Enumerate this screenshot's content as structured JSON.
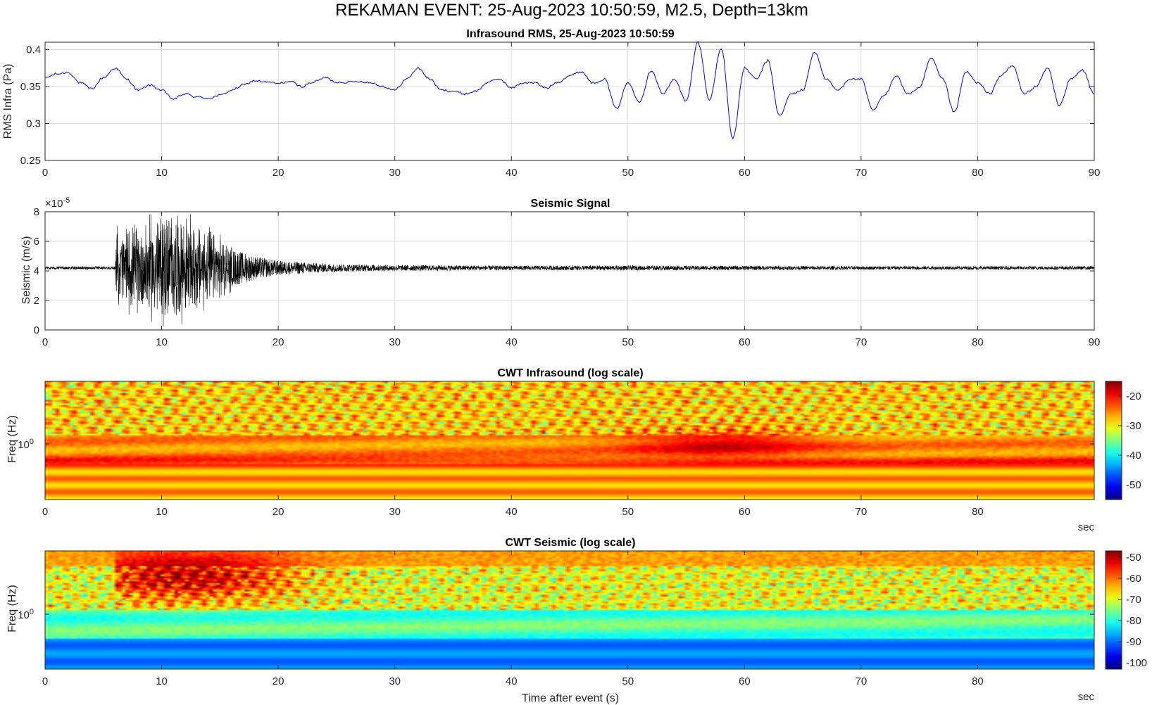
{
  "figure": {
    "suptitle": "REKAMAN EVENT: 25-Aug-2023 10:50:59, M2.5, Depth=13km"
  },
  "colors": {
    "rms_line": "#0000ff",
    "seismic_line": "#000000",
    "colormap": "jet"
  },
  "chart_data": [
    {
      "id": "infrasound-rms",
      "type": "line",
      "title": "Infrasound RMS, 25-Aug-2023 10:50:59",
      "xlabel": "",
      "ylabel": "RMS Infra (Pa)",
      "xlim": [
        0,
        90
      ],
      "ylim": [
        0.25,
        0.41
      ],
      "xticks": [
        0,
        10,
        20,
        30,
        40,
        50,
        60,
        70,
        80,
        90
      ],
      "yticks": [
        0.25,
        0.3,
        0.35,
        0.4
      ],
      "ytick_labels": [
        "0.25",
        "0.3",
        "0.35",
        "0.4"
      ],
      "grid": true,
      "series": [
        {
          "color": "#0000ff",
          "x": [
            0,
            1,
            2,
            3,
            4,
            5,
            6,
            7,
            8,
            9,
            10,
            11,
            12,
            13,
            14,
            15,
            16,
            17,
            18,
            19,
            20,
            21,
            22,
            23,
            24,
            25,
            26,
            27,
            28,
            29,
            30,
            31,
            32,
            33,
            34,
            35,
            36,
            37,
            38,
            39,
            40,
            41,
            42,
            43,
            44,
            45,
            46,
            47,
            48,
            49,
            50,
            51,
            52,
            53,
            54,
            55,
            56,
            57,
            58,
            59,
            60,
            61,
            62,
            63,
            64,
            65,
            66,
            67,
            68,
            69,
            70,
            71,
            72,
            73,
            74,
            75,
            76,
            77,
            78,
            79,
            80,
            81,
            82,
            83,
            84,
            85,
            86,
            87,
            88,
            89,
            90
          ],
          "y": [
            0.362,
            0.367,
            0.369,
            0.355,
            0.347,
            0.362,
            0.375,
            0.36,
            0.345,
            0.352,
            0.345,
            0.333,
            0.34,
            0.336,
            0.334,
            0.338,
            0.345,
            0.352,
            0.358,
            0.356,
            0.354,
            0.357,
            0.35,
            0.356,
            0.362,
            0.356,
            0.356,
            0.357,
            0.355,
            0.35,
            0.345,
            0.36,
            0.375,
            0.36,
            0.345,
            0.344,
            0.34,
            0.344,
            0.356,
            0.36,
            0.348,
            0.355,
            0.355,
            0.348,
            0.356,
            0.365,
            0.37,
            0.355,
            0.36,
            0.32,
            0.355,
            0.33,
            0.372,
            0.34,
            0.36,
            0.33,
            0.41,
            0.332,
            0.402,
            0.28,
            0.375,
            0.36,
            0.385,
            0.31,
            0.34,
            0.345,
            0.397,
            0.36,
            0.345,
            0.36,
            0.36,
            0.318,
            0.338,
            0.365,
            0.34,
            0.348,
            0.388,
            0.36,
            0.315,
            0.37,
            0.355,
            0.34,
            0.365,
            0.378,
            0.34,
            0.35,
            0.375,
            0.325,
            0.36,
            0.372,
            0.34
          ]
        }
      ]
    },
    {
      "id": "seismic-signal",
      "type": "line",
      "title": "Seismic Signal",
      "xlabel": "",
      "ylabel": "Seismic (m/s)",
      "y_exponent_label": "×10",
      "y_exponent": "-5",
      "xlim": [
        0,
        90
      ],
      "ylim": [
        0,
        8
      ],
      "xticks": [
        0,
        10,
        20,
        30,
        40,
        50,
        60,
        70,
        80,
        90
      ],
      "yticks": [
        0,
        2,
        4,
        6,
        8
      ],
      "grid": true,
      "baseline": 4.2,
      "onset_time": 6,
      "envelope": {
        "x": [
          0,
          6,
          6.2,
          8,
          10,
          12,
          14,
          16,
          18,
          20,
          22,
          24,
          26,
          28,
          30,
          40,
          50,
          60,
          70,
          80,
          90
        ],
        "amplitude": [
          0.1,
          0.1,
          2.2,
          2.4,
          3.2,
          2.8,
          2.2,
          1.3,
          0.8,
          0.5,
          0.4,
          0.3,
          0.25,
          0.22,
          0.2,
          0.15,
          0.16,
          0.14,
          0.12,
          0.12,
          0.12
        ]
      },
      "series": [
        {
          "color": "#000000"
        }
      ]
    },
    {
      "id": "cwt-infrasound",
      "type": "heatmap",
      "title": "CWT Infrasound (log scale)",
      "xlabel": "",
      "ylabel": "Freq (Hz)",
      "xunit": "sec",
      "xlim": [
        0,
        90
      ],
      "xticks": [
        0,
        10,
        20,
        30,
        40,
        50,
        60,
        70,
        80
      ],
      "ytick_label": "10",
      "ytick_exponent": "0",
      "colorbar": {
        "ticks": [
          -20,
          -30,
          -40,
          -50
        ],
        "clim": [
          -55,
          -15
        ]
      },
      "colormap": "jet"
    },
    {
      "id": "cwt-seismic",
      "type": "heatmap",
      "title": "CWT Seismic (log scale)",
      "xlabel": "Time after event (s)",
      "ylabel": "Freq (Hz)",
      "xunit": "sec",
      "xlim": [
        0,
        90
      ],
      "xticks": [
        0,
        10,
        20,
        30,
        40,
        50,
        60,
        70,
        80
      ],
      "ytick_label": "10",
      "ytick_exponent": "0",
      "colorbar": {
        "ticks": [
          -50,
          -60,
          -70,
          -80,
          -90,
          -100
        ],
        "clim": [
          -103,
          -47
        ]
      },
      "colormap": "jet"
    }
  ]
}
